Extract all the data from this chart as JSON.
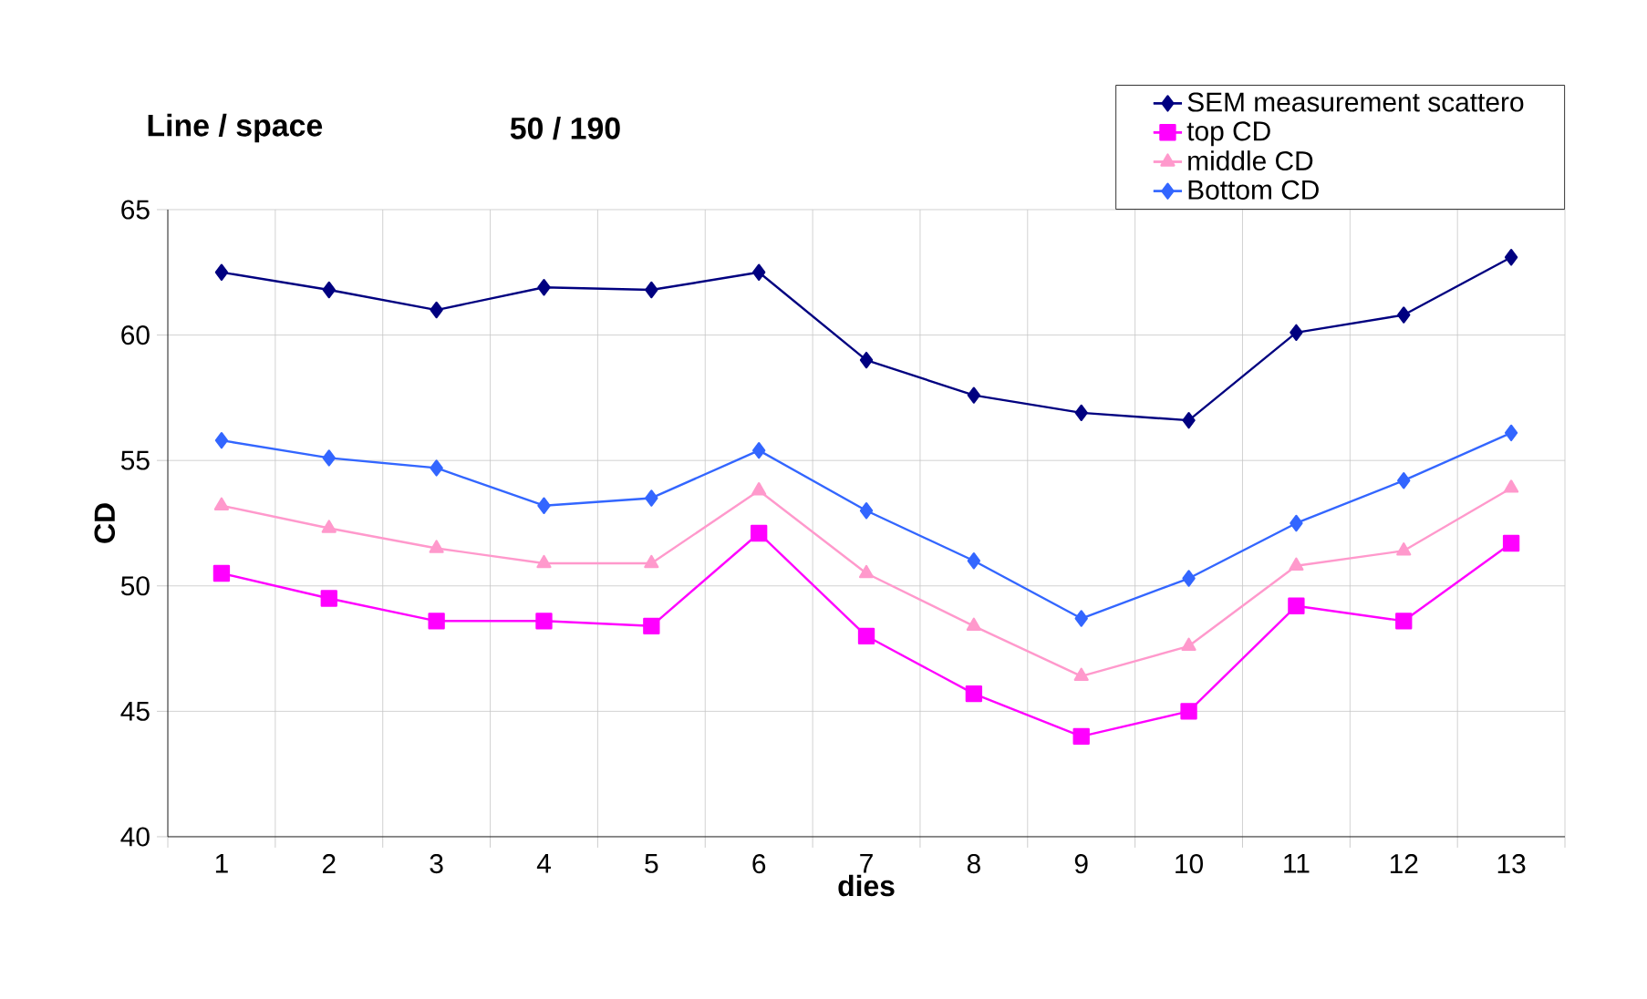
{
  "chart_data": {
    "type": "line",
    "title": "Line / space",
    "subtitle": "50 / 190",
    "xlabel": "dies",
    "ylabel": "CD",
    "categories": [
      "1",
      "2",
      "3",
      "4",
      "5",
      "6",
      "7",
      "8",
      "9",
      "10",
      "11",
      "12",
      "13"
    ],
    "series": [
      {
        "name": "SEM measurement scattero",
        "color": "#000080",
        "marker": "diamond",
        "values": [
          62.5,
          61.8,
          61.0,
          61.9,
          61.8,
          62.5,
          59.0,
          57.6,
          56.9,
          56.6,
          60.1,
          60.8,
          63.1
        ]
      },
      {
        "name": "top CD",
        "color": "#ff00ff",
        "marker": "square",
        "values": [
          50.5,
          49.5,
          48.6,
          48.6,
          48.4,
          52.1,
          48.0,
          45.7,
          44.0,
          45.0,
          49.2,
          48.6,
          51.7
        ]
      },
      {
        "name": "middle CD",
        "color": "#ff99cc",
        "marker": "triangle",
        "values": [
          53.2,
          52.3,
          51.5,
          50.9,
          50.9,
          53.8,
          50.5,
          48.4,
          46.4,
          47.6,
          50.8,
          51.4,
          53.9
        ]
      },
      {
        "name": "Bottom CD",
        "color": "#3366ff",
        "marker": "diamond",
        "values": [
          55.8,
          55.1,
          54.7,
          53.2,
          53.5,
          55.4,
          53.0,
          51.0,
          48.7,
          50.3,
          52.5,
          54.2,
          56.1
        ]
      }
    ],
    "ylim": [
      40,
      65
    ],
    "yticks": [
      40,
      45,
      50,
      55,
      60,
      65
    ],
    "grid": true,
    "legend": "top right",
    "line_style": "solid"
  }
}
